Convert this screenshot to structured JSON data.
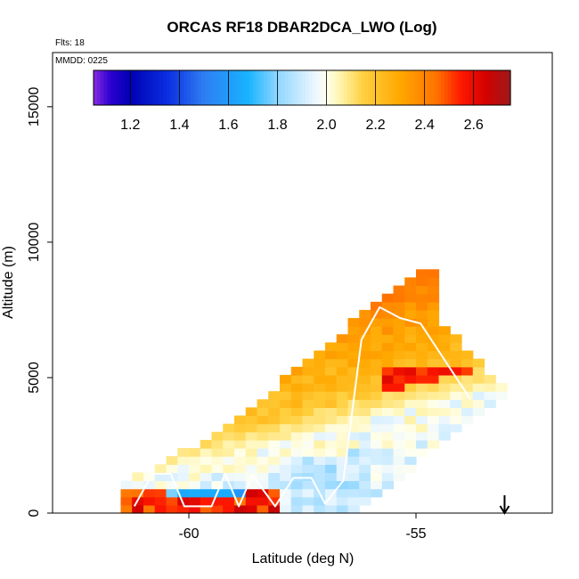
{
  "chart_data": {
    "type": "heatmap",
    "title": "ORCAS RF18 DBAR2DCA_LWO (Log)",
    "flights_note": "Flts: 18",
    "date_note": "MMDD: 0225",
    "xlabel": "Latitude (deg N)",
    "ylabel": "Altitude (m)",
    "xlim": [
      -63,
      -52
    ],
    "ylim": [
      0,
      17000
    ],
    "x_ticks": [
      -60,
      -55
    ],
    "x_tick_labels": [
      "-60",
      "-55"
    ],
    "y_ticks": [
      0,
      5000,
      10000,
      15000
    ],
    "y_tick_labels": [
      "0",
      "5000",
      "10000",
      "15000"
    ],
    "colorbar": {
      "range": [
        1.05,
        2.75
      ],
      "ticks": [
        1.2,
        1.4,
        1.6,
        1.8,
        2.0,
        2.2,
        2.4,
        2.6
      ],
      "tick_labels": [
        "1.2",
        "1.4",
        "1.6",
        "1.8",
        "2.0",
        "2.2",
        "2.4",
        "2.6"
      ],
      "stops": [
        {
          "v": 1.05,
          "color": "#8a2be2"
        },
        {
          "v": 1.12,
          "color": "#2a00d0"
        },
        {
          "v": 1.2,
          "color": "#0000b4"
        },
        {
          "v": 1.35,
          "color": "#0a2ee0"
        },
        {
          "v": 1.5,
          "color": "#2f7df2"
        },
        {
          "v": 1.68,
          "color": "#17b4ff"
        },
        {
          "v": 1.8,
          "color": "#8fd6ff"
        },
        {
          "v": 1.95,
          "color": "#eaf6ff"
        },
        {
          "v": 2.0,
          "color": "#fffff0"
        },
        {
          "v": 2.05,
          "color": "#fff6b4"
        },
        {
          "v": 2.15,
          "color": "#ffd040"
        },
        {
          "v": 2.3,
          "color": "#ffa800"
        },
        {
          "v": 2.45,
          "color": "#ff7200"
        },
        {
          "v": 2.55,
          "color": "#ff1800"
        },
        {
          "v": 2.65,
          "color": "#d30000"
        },
        {
          "v": 2.75,
          "color": "#9e1a1a"
        }
      ]
    },
    "grid": {
      "lat_step": 0.25,
      "alt_step": 300,
      "lat_start": -61.5,
      "alt_start": 0,
      "model": "banded field: warm upper region, pale mid band, blue low band"
    },
    "flight_track": {
      "color": "#ffffff",
      "points": [
        [
          -61.2,
          250
        ],
        [
          -60.8,
          1450
        ],
        [
          -60.4,
          1450
        ],
        [
          -60.1,
          250
        ],
        [
          -59.5,
          250
        ],
        [
          -59.2,
          1450
        ],
        [
          -58.9,
          250
        ],
        [
          -58.6,
          1400
        ],
        [
          -58.1,
          250
        ],
        [
          -57.7,
          1300
        ],
        [
          -57.3,
          1300
        ],
        [
          -57.0,
          350
        ],
        [
          -56.6,
          1200
        ],
        [
          -56.2,
          6400
        ],
        [
          -55.8,
          7600
        ],
        [
          -55.35,
          7200
        ],
        [
          -54.9,
          7000
        ],
        [
          -53.8,
          4200
        ]
      ]
    },
    "annotations": [
      {
        "type": "arrow",
        "lat": -53.05,
        "direction": "down",
        "symbol": "↓"
      }
    ]
  }
}
